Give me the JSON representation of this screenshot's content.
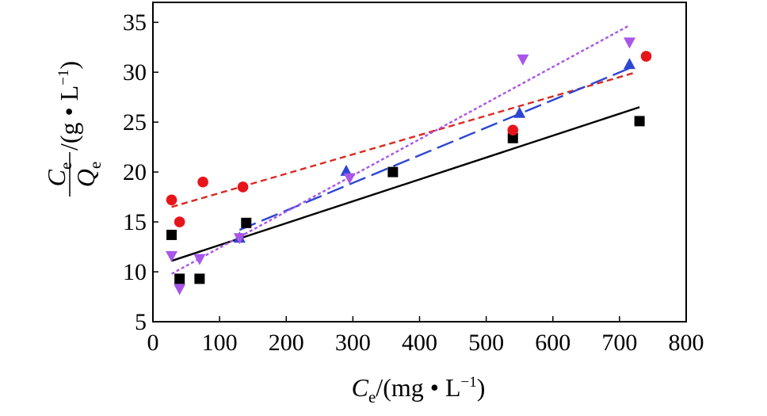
{
  "chart_data": {
    "type": "scatter",
    "title": "",
    "xlabel": {
      "var": "C",
      "sub": "e",
      "unit": "/(mg • L",
      "sup": "−1",
      "close": ")"
    },
    "ylabel": {
      "num_var": "C",
      "num_sub": "e",
      "den_var": "Q",
      "den_sub": "e",
      "unit": "/(g • L",
      "sup": "−1",
      "close": ")"
    },
    "xlim": [
      0,
      800
    ],
    "ylim": [
      5,
      37
    ],
    "xticks": [
      0,
      100,
      200,
      300,
      400,
      500,
      600,
      700,
      800
    ],
    "yticks": [
      5,
      10,
      15,
      20,
      25,
      30,
      35
    ],
    "series": [
      {
        "name": "square",
        "marker": "square",
        "color": "#000000",
        "points": [
          [
            28,
            13.7
          ],
          [
            40,
            9.3
          ],
          [
            70,
            9.3
          ],
          [
            140,
            14.9
          ],
          [
            360,
            20.0
          ],
          [
            540,
            23.4
          ],
          [
            730,
            25.1
          ]
        ],
        "fit": {
          "x": [
            28,
            730
          ],
          "y": [
            11.1,
            26.5
          ],
          "dash": "solid",
          "color": "#000000"
        }
      },
      {
        "name": "circle",
        "marker": "circle",
        "color": "#e8141b",
        "points": [
          [
            28,
            17.2
          ],
          [
            40,
            15.0
          ],
          [
            75,
            19.0
          ],
          [
            135,
            18.5
          ],
          [
            540,
            24.2
          ],
          [
            740,
            31.6
          ]
        ],
        "fit": {
          "x": [
            28,
            720
          ],
          "y": [
            16.5,
            29.9
          ],
          "dash": "short",
          "color": "#d92a22"
        }
      },
      {
        "name": "triangle-up",
        "marker": "triangle-up",
        "color": "#2d46d2",
        "points": [
          [
            130,
            13.4
          ],
          [
            290,
            20.1
          ],
          [
            550,
            25.9
          ],
          [
            715,
            30.8
          ]
        ],
        "fit": {
          "x": [
            130,
            715
          ],
          "y": [
            14.2,
            30.4
          ],
          "dash": "long",
          "color": "#2d46d2"
        }
      },
      {
        "name": "triangle-down",
        "marker": "triangle-down",
        "color": "#a855e8",
        "points": [
          [
            28,
            11.6
          ],
          [
            40,
            8.3
          ],
          [
            70,
            11.3
          ],
          [
            130,
            13.4
          ],
          [
            295,
            19.4
          ],
          [
            555,
            31.3
          ],
          [
            715,
            33.0
          ]
        ],
        "fit": {
          "x": [
            28,
            715
          ],
          "y": [
            9.8,
            34.7
          ],
          "dash": "dotted",
          "color": "#a855e8"
        }
      }
    ]
  }
}
